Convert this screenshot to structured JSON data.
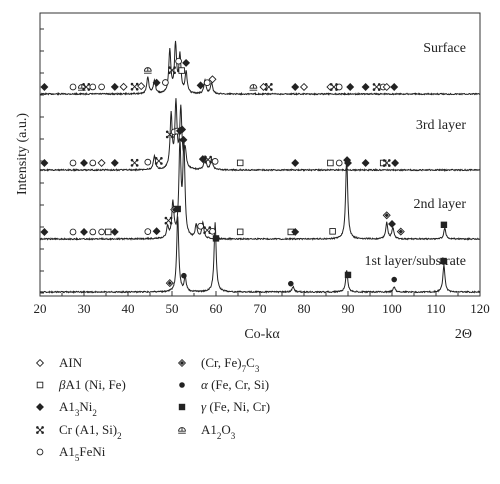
{
  "chart_data": {
    "type": "line",
    "title": "",
    "xlabel": "Co-kα",
    "xlabel_secondary": "2Θ",
    "ylabel": "Intensity (a.u.)",
    "xlim": [
      20,
      120
    ],
    "x_ticks": [
      20,
      30,
      40,
      50,
      60,
      70,
      80,
      90,
      100,
      110,
      120
    ],
    "grid": false,
    "legend_position": "below",
    "legend": [
      {
        "symbol": "diamond-open",
        "label": "AlN"
      },
      {
        "symbol": "square-open",
        "label": "βAl (Ni, Fe)"
      },
      {
        "symbol": "diamond-filled",
        "label": "Al3Ni2"
      },
      {
        "symbol": "cross",
        "label": "Cr (Al, Si)2"
      },
      {
        "symbol": "circle-open",
        "label": "Al5FeNi"
      },
      {
        "symbol": "diamond-dotted",
        "label": "(Cr, Fe)7C3"
      },
      {
        "symbol": "circle-filled",
        "label": "α (Fe, Cr, Si)"
      },
      {
        "symbol": "square-filled",
        "label": "γ (Fe, Ni, Cr)"
      },
      {
        "symbol": "arch",
        "label": "Al2O3"
      }
    ],
    "series": [
      {
        "name": "Surface",
        "peaks": [
          [
            44.5,
            0.06
          ],
          [
            46,
            0.05
          ],
          [
            49.5,
            0.16
          ],
          [
            50.8,
            0.18
          ],
          [
            51.8,
            0.14
          ],
          [
            53.2,
            0.08
          ],
          [
            57.5,
            0.05
          ],
          [
            59,
            0.04
          ]
        ],
        "markers": [
          {
            "x": 21,
            "m": "diamond-filled"
          },
          {
            "x": 27.5,
            "m": "circle-open"
          },
          {
            "x": 29.5,
            "m": "arch"
          },
          {
            "x": 30.5,
            "m": "cross"
          },
          {
            "x": 32,
            "m": "circle-open"
          },
          {
            "x": 34,
            "m": "circle-open"
          },
          {
            "x": 37,
            "m": "diamond-filled"
          },
          {
            "x": 39,
            "m": "diamond-open"
          },
          {
            "x": 41.5,
            "m": "cross"
          },
          {
            "x": 43,
            "m": "diamond-open"
          },
          {
            "x": 44.5,
            "m": "arch"
          },
          {
            "x": 46.5,
            "m": "diamond-filled"
          },
          {
            "x": 48.5,
            "m": "circle-open"
          },
          {
            "x": 50,
            "m": "cross"
          },
          {
            "x": 51.5,
            "m": "circle-open"
          },
          {
            "x": 52.2,
            "m": "square-open"
          },
          {
            "x": 53.2,
            "m": "diamond-filled"
          },
          {
            "x": 56.5,
            "m": "diamond-filled"
          },
          {
            "x": 58,
            "m": "circle-open"
          },
          {
            "x": 59.2,
            "m": "diamond-open"
          },
          {
            "x": 68.5,
            "m": "arch"
          },
          {
            "x": 70.8,
            "m": "diamond-open"
          },
          {
            "x": 72,
            "m": "cross"
          },
          {
            "x": 78,
            "m": "diamond-filled"
          },
          {
            "x": 80,
            "m": "diamond-open"
          },
          {
            "x": 86,
            "m": "diamond-open"
          },
          {
            "x": 86.8,
            "m": "cross"
          },
          {
            "x": 88,
            "m": "circle-open"
          },
          {
            "x": 90.5,
            "m": "diamond-filled"
          },
          {
            "x": 94,
            "m": "diamond-filled"
          },
          {
            "x": 96.5,
            "m": "cross"
          },
          {
            "x": 98,
            "m": "circle-open"
          },
          {
            "x": 98.8,
            "m": "diamond-open"
          },
          {
            "x": 100.5,
            "m": "diamond-filled"
          }
        ]
      },
      {
        "name": "3rd layer",
        "peaks": [
          [
            46,
            0.05
          ],
          [
            49.8,
            0.2
          ],
          [
            50.9,
            0.24
          ],
          [
            52,
            0.22
          ],
          [
            53,
            0.07
          ],
          [
            57.5,
            0.05
          ],
          [
            59,
            0.04
          ]
        ],
        "markers": [
          {
            "x": 21,
            "m": "diamond-filled"
          },
          {
            "x": 27.5,
            "m": "circle-open"
          },
          {
            "x": 30,
            "m": "diamond-filled"
          },
          {
            "x": 32,
            "m": "circle-open"
          },
          {
            "x": 34,
            "m": "diamond-open"
          },
          {
            "x": 37,
            "m": "diamond-filled"
          },
          {
            "x": 41.5,
            "m": "cross"
          },
          {
            "x": 44.5,
            "m": "circle-open"
          },
          {
            "x": 47,
            "m": "cross"
          },
          {
            "x": 49.5,
            "m": "cross"
          },
          {
            "x": 50.5,
            "m": "circle-open"
          },
          {
            "x": 51.3,
            "m": "square-open"
          },
          {
            "x": 52.3,
            "m": "diamond-filled"
          },
          {
            "x": 57,
            "m": "diamond-filled"
          },
          {
            "x": 58.2,
            "m": "cross"
          },
          {
            "x": 59.8,
            "m": "circle-open"
          },
          {
            "x": 65.5,
            "m": "square-open"
          },
          {
            "x": 78,
            "m": "diamond-filled"
          },
          {
            "x": 86,
            "m": "square-open"
          },
          {
            "x": 88,
            "m": "circle-open"
          },
          {
            "x": 90,
            "m": "diamond-filled"
          },
          {
            "x": 94,
            "m": "diamond-filled"
          },
          {
            "x": 98,
            "m": "square-open"
          },
          {
            "x": 98.8,
            "m": "cross"
          },
          {
            "x": 100.7,
            "m": "diamond-filled"
          }
        ]
      },
      {
        "name": "2nd layer",
        "peaks": [
          [
            49,
            0.04
          ],
          [
            50.2,
            0.13
          ],
          [
            51.8,
            0.34
          ],
          [
            52.7,
            0.34
          ],
          [
            55.5,
            0.05
          ],
          [
            57,
            0.06
          ],
          [
            89.7,
            0.3
          ],
          [
            98.8,
            0.06
          ],
          [
            100.2,
            0.04
          ],
          [
            112,
            0.04
          ]
        ],
        "markers": [
          {
            "x": 21,
            "m": "diamond-filled"
          },
          {
            "x": 27.5,
            "m": "circle-open"
          },
          {
            "x": 30,
            "m": "diamond-filled"
          },
          {
            "x": 32,
            "m": "circle-open"
          },
          {
            "x": 34,
            "m": "circle-open"
          },
          {
            "x": 35.5,
            "m": "square-open"
          },
          {
            "x": 37,
            "m": "diamond-filled"
          },
          {
            "x": 44.5,
            "m": "circle-open"
          },
          {
            "x": 46.5,
            "m": "diamond-filled"
          },
          {
            "x": 49.2,
            "m": "cross"
          },
          {
            "x": 50.5,
            "m": "diamond-dotted"
          },
          {
            "x": 51.8,
            "m": "diamond-filled"
          },
          {
            "x": 52.6,
            "m": "diamond-filled"
          },
          {
            "x": 56.5,
            "m": "circle-open"
          },
          {
            "x": 58,
            "m": "cross"
          },
          {
            "x": 59.2,
            "m": "circle-open"
          },
          {
            "x": 65.5,
            "m": "square-open"
          },
          {
            "x": 77,
            "m": "square-open"
          },
          {
            "x": 78,
            "m": "diamond-filled"
          },
          {
            "x": 86.5,
            "m": "square-open"
          },
          {
            "x": 89.8,
            "m": "diamond-filled"
          },
          {
            "x": 98.8,
            "m": "diamond-dotted"
          },
          {
            "x": 100,
            "m": "diamond-filled"
          },
          {
            "x": 102,
            "m": "diamond-dotted"
          },
          {
            "x": 111.8,
            "m": "square-filled"
          }
        ]
      },
      {
        "name": "1st layer/substrate",
        "peaks": [
          [
            51.3,
            0.28
          ],
          [
            53,
            0.05
          ],
          [
            59.8,
            0.26
          ],
          [
            77.5,
            0.02
          ],
          [
            89.7,
            0.08
          ],
          [
            100.5,
            0.02
          ],
          [
            111.8,
            0.1
          ]
        ],
        "markers": [
          {
            "x": 49.5,
            "m": "diamond-dotted"
          },
          {
            "x": 51.3,
            "m": "square-filled"
          },
          {
            "x": 52.7,
            "m": "circle-filled"
          },
          {
            "x": 60,
            "m": "square-filled"
          },
          {
            "x": 77,
            "m": "circle-filled"
          },
          {
            "x": 90,
            "m": "square-filled"
          },
          {
            "x": 100.5,
            "m": "circle-filled"
          },
          {
            "x": 111.7,
            "m": "square-filled"
          }
        ]
      }
    ]
  }
}
